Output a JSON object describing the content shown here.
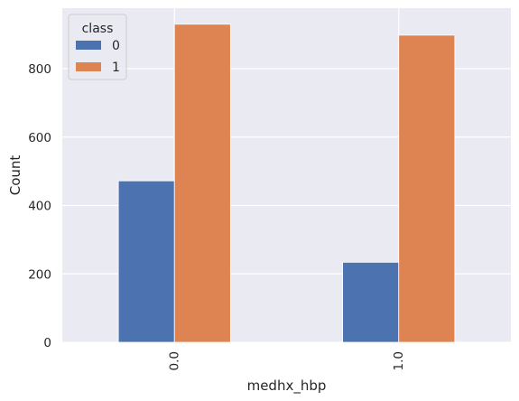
{
  "chart_data": {
    "type": "bar",
    "title": "",
    "xlabel": "medhx_hbp",
    "ylabel": "Count",
    "categories": [
      "0.0",
      "1.0"
    ],
    "series": [
      {
        "name": "0",
        "values": [
          472,
          234
        ]
      },
      {
        "name": "1",
        "values": [
          930,
          898
        ]
      }
    ],
    "ylim": [
      0,
      977
    ],
    "yticks": [
      0,
      200,
      400,
      600,
      800
    ],
    "grid": true,
    "legend": {
      "title": "class",
      "placement": "top-left"
    }
  },
  "colors": {
    "background": "#eaeaf2",
    "grid": "#ffffff",
    "series": [
      "#4c72b0",
      "#dd8452"
    ],
    "text": "#262626"
  }
}
